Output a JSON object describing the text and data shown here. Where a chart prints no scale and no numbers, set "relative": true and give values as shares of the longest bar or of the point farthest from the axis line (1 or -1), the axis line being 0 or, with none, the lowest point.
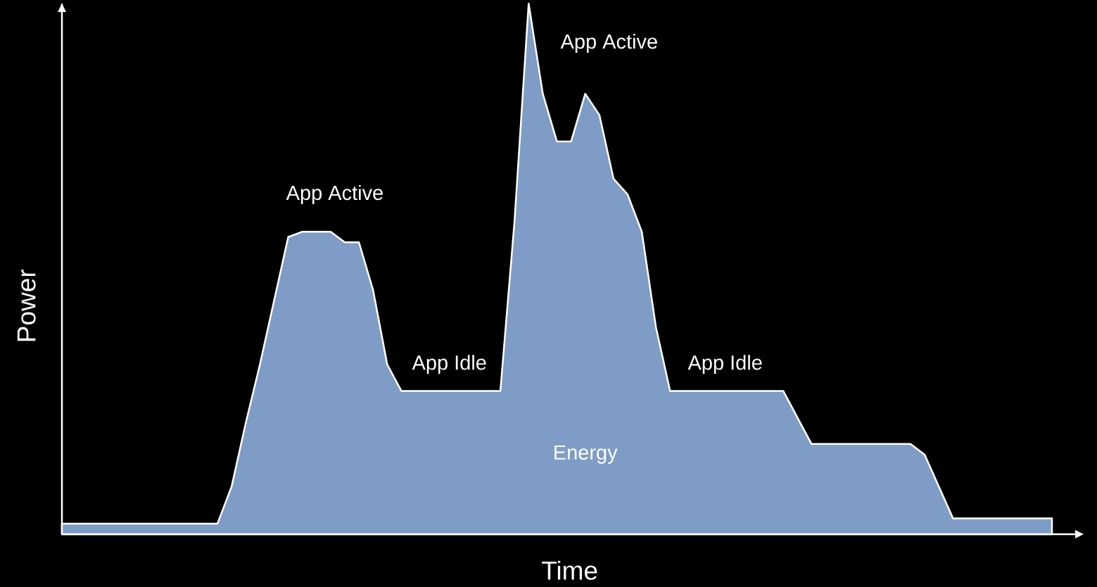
{
  "chart_data": {
    "type": "area",
    "relative": true,
    "xlabel": "Time",
    "ylabel": "Power",
    "color": "#7f9cc6",
    "categories": [
      null,
      null,
      null,
      null,
      null,
      null,
      null,
      null,
      null,
      null,
      null,
      null,
      null,
      null,
      null,
      null,
      null,
      null,
      null,
      null,
      null,
      null,
      null,
      null,
      null,
      null,
      null,
      null,
      null,
      null,
      null,
      null,
      null,
      null,
      null,
      null,
      null,
      null,
      null,
      null,
      null,
      null,
      null,
      null,
      null,
      null,
      null,
      null,
      null,
      null,
      null,
      null,
      null,
      null,
      null,
      null,
      null,
      null,
      null,
      null,
      null,
      null,
      null,
      null,
      null,
      null,
      null,
      null,
      null,
      null,
      null
    ],
    "values": [
      0.02,
      0.02,
      0.02,
      0.02,
      0.02,
      0.02,
      0.02,
      0.02,
      0.02,
      0.02,
      0.02,
      0.02,
      0.09,
      0.21,
      0.32,
      0.44,
      0.56,
      0.57,
      0.57,
      0.57,
      0.55,
      0.55,
      0.46,
      0.32,
      0.27,
      0.27,
      0.27,
      0.27,
      0.27,
      0.27,
      0.27,
      0.27,
      0.59,
      1,
      0.83,
      0.74,
      0.74,
      0.83,
      0.79,
      0.67,
      0.64,
      0.57,
      0.39,
      0.27,
      0.27,
      0.27,
      0.27,
      0.27,
      0.27,
      0.27,
      0.27,
      0.27,
      0.22,
      0.17,
      0.17,
      0.17,
      0.17,
      0.17,
      0.17,
      0.17,
      0.17,
      0.15,
      0.09,
      0.03,
      0.03,
      0.03,
      0.03,
      0.03,
      0.03,
      0.03,
      0.03
    ],
    "annotations": [
      "App Active",
      "App Idle",
      "App Active",
      "App Idle",
      "Energy"
    ]
  }
}
